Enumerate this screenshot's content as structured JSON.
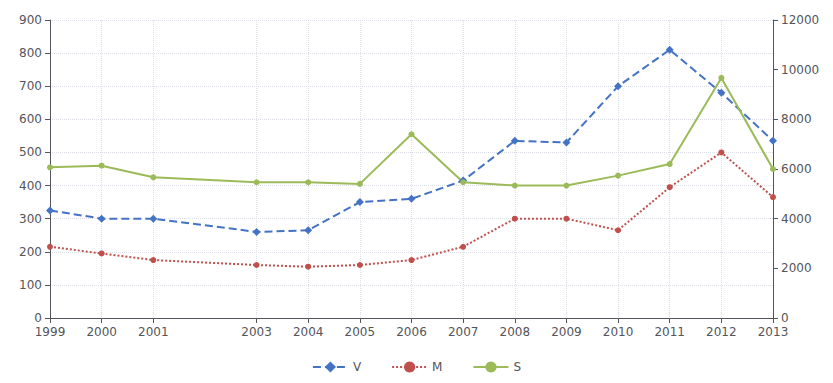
{
  "chart_data": {
    "type": "line",
    "x": [
      1999,
      2000,
      2001,
      2003,
      2004,
      2005,
      2006,
      2007,
      2008,
      2009,
      2010,
      2011,
      2012,
      2013
    ],
    "xlim": [
      1999,
      2013
    ],
    "xticks": [
      1999,
      2000,
      2001,
      2003,
      2004,
      2005,
      2006,
      2007,
      2008,
      2009,
      2010,
      2011,
      2012,
      2013
    ],
    "series": [
      {
        "name": "V",
        "color": "#4472C4",
        "line_style": "dashed",
        "marker": "diamond",
        "values": [
          325,
          300,
          300,
          260,
          265,
          350,
          360,
          415,
          535,
          530,
          700,
          810,
          680,
          535
        ]
      },
      {
        "name": "M",
        "color": "#C0504D",
        "line_style": "dotted",
        "marker": "circle",
        "values": [
          215,
          195,
          175,
          160,
          155,
          160,
          175,
          215,
          300,
          300,
          265,
          395,
          500,
          365
        ]
      },
      {
        "name": "S",
        "color": "#9BBB59",
        "line_style": "solid",
        "marker": "circle",
        "values": [
          455,
          460,
          425,
          410,
          410,
          405,
          555,
          410,
          400,
          400,
          430,
          465,
          725,
          450
        ]
      }
    ],
    "ylim": [
      0,
      900
    ],
    "yticks": [
      0,
      100,
      200,
      300,
      400,
      500,
      600,
      700,
      800,
      900
    ],
    "y2lim": [
      0,
      12000
    ],
    "y2ticks": [
      0,
      2000,
      4000,
      6000,
      8000,
      10000,
      12000
    ],
    "grid": true,
    "legend": "bottom"
  }
}
